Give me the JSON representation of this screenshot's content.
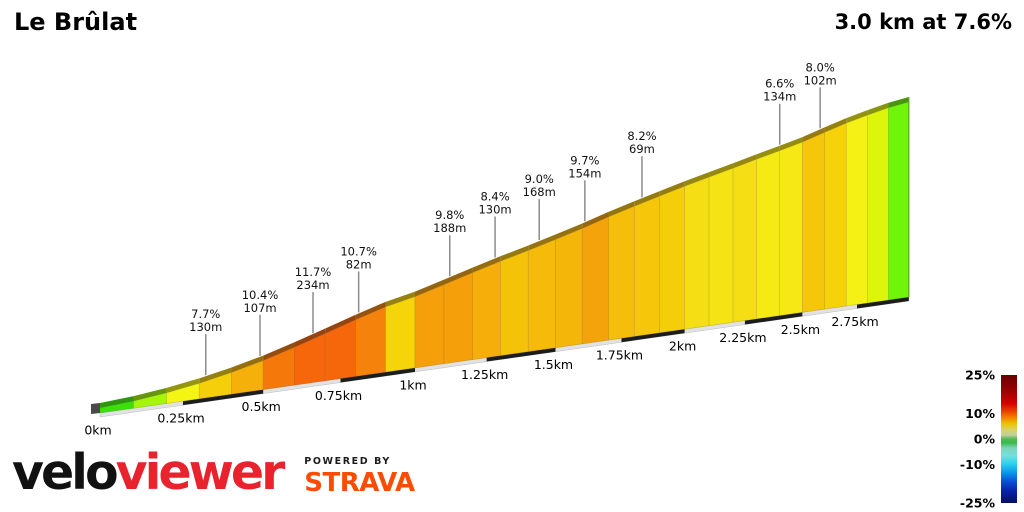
{
  "header": {
    "title": "Le Brûlat",
    "summary": "3.0 km at 7.6%"
  },
  "footer": {
    "brand_black": "velo",
    "brand_red": "viewer",
    "powered_by": "POWERED BY",
    "strava": "STRAVA"
  },
  "colors": {
    "brand_red": "#e8232d",
    "strava_orange": "#fc4c02",
    "pointer_gray": "#8c8c8c"
  },
  "chart_data": {
    "type": "area",
    "title": "Le Brûlat",
    "subtitle": "3.0 km at 7.6%",
    "total_km": 3.0,
    "avg_gradient_pct": 7.6,
    "segment_length_km": 0.1,
    "segment_gradients_pct": [
      2.5,
      4.5,
      6.0,
      7.7,
      9.2,
      11.0,
      11.7,
      11.7,
      10.7,
      7.5,
      9.8,
      9.8,
      9.3,
      8.4,
      8.8,
      9.0,
      9.7,
      8.6,
      8.2,
      7.8,
      7.0,
      6.8,
      7.0,
      6.5,
      6.6,
      8.2,
      7.6,
      6.2,
      5.5,
      3.5
    ],
    "x_ticks": [
      {
        "km": 0.0,
        "label": "0km"
      },
      {
        "km": 0.25,
        "label": "0.25km"
      },
      {
        "km": 0.5,
        "label": "0.5km"
      },
      {
        "km": 0.75,
        "label": "0.75km"
      },
      {
        "km": 1.0,
        "label": "1km"
      },
      {
        "km": 1.25,
        "label": "1.25km"
      },
      {
        "km": 1.5,
        "label": "1.5km"
      },
      {
        "km": 1.75,
        "label": "1.75km"
      },
      {
        "km": 2.0,
        "label": "2km"
      },
      {
        "km": 2.25,
        "label": "2.25km"
      },
      {
        "km": 2.5,
        "label": "2.5km"
      },
      {
        "km": 2.75,
        "label": "2.75km"
      }
    ],
    "section_labels": [
      {
        "gradient": "7.7%",
        "length": "130m",
        "at_km": 0.32
      },
      {
        "gradient": "10.4%",
        "length": "107m",
        "at_km": 0.49
      },
      {
        "gradient": "11.7%",
        "length": "234m",
        "at_km": 0.66
      },
      {
        "gradient": "10.7%",
        "length": "82m",
        "at_km": 0.81
      },
      {
        "gradient": "9.8%",
        "length": "188m",
        "at_km": 1.12
      },
      {
        "gradient": "8.4%",
        "length": "130m",
        "at_km": 1.28
      },
      {
        "gradient": "9.0%",
        "length": "168m",
        "at_km": 1.44
      },
      {
        "gradient": "9.7%",
        "length": "154m",
        "at_km": 1.61
      },
      {
        "gradient": "8.2%",
        "length": "69m",
        "at_km": 1.83
      },
      {
        "gradient": "6.6%",
        "length": "134m",
        "at_km": 2.4
      },
      {
        "gradient": "8.0%",
        "length": "102m",
        "at_km": 2.58
      }
    ],
    "colorbar": {
      "max_pct": 25,
      "min_pct": -25,
      "ticks": [
        {
          "value": 25,
          "label": "25%"
        },
        {
          "value": 10,
          "label": "10%"
        },
        {
          "value": 0,
          "label": "0%"
        },
        {
          "value": -10,
          "label": "-10%"
        },
        {
          "value": -25,
          "label": "-25%"
        }
      ]
    }
  }
}
